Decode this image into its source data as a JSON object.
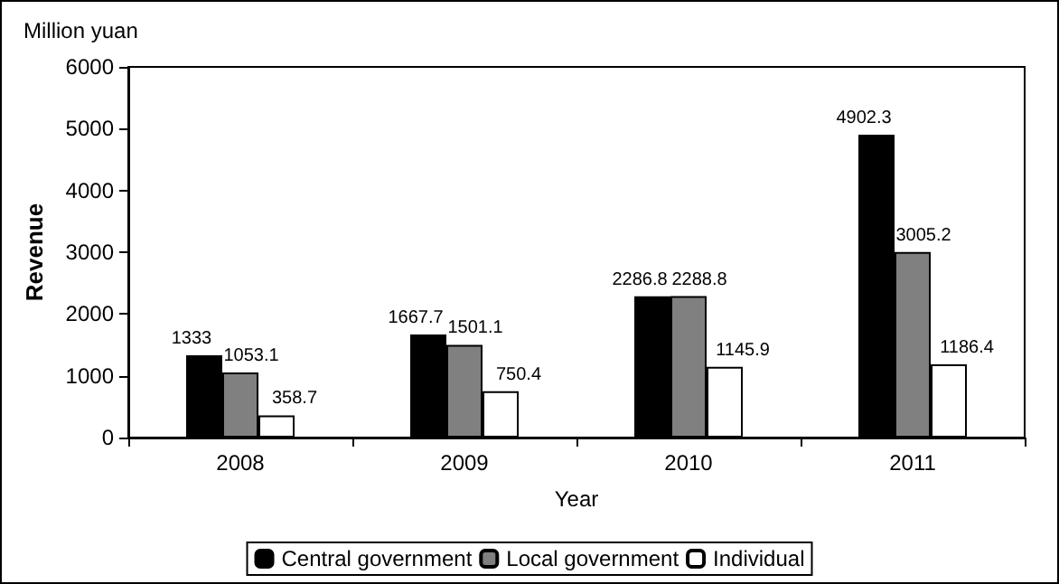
{
  "chart_data": {
    "type": "bar",
    "xlabel": "Year",
    "ylabel": "Revenue",
    "annotations": [
      "Million yuan"
    ],
    "categories": [
      "2008",
      "2009",
      "2010",
      "2011"
    ],
    "series": [
      {
        "name": "Central government",
        "color": "#000000",
        "values": [
          1333,
          1667.7,
          2286.8,
          4902.3
        ]
      },
      {
        "name": "Local government",
        "color": "#808080",
        "values": [
          1053.1,
          1501.1,
          2288.8,
          3005.2
        ]
      },
      {
        "name": "Individual",
        "color": "#ffffff",
        "values": [
          358.7,
          750.4,
          1145.9,
          1186.4
        ]
      }
    ],
    "ylim": [
      0,
      6000
    ],
    "yticks": [
      0,
      1000,
      2000,
      3000,
      4000,
      5000,
      6000
    ],
    "grid": false,
    "legend": "bottom",
    "data_labels": true
  }
}
